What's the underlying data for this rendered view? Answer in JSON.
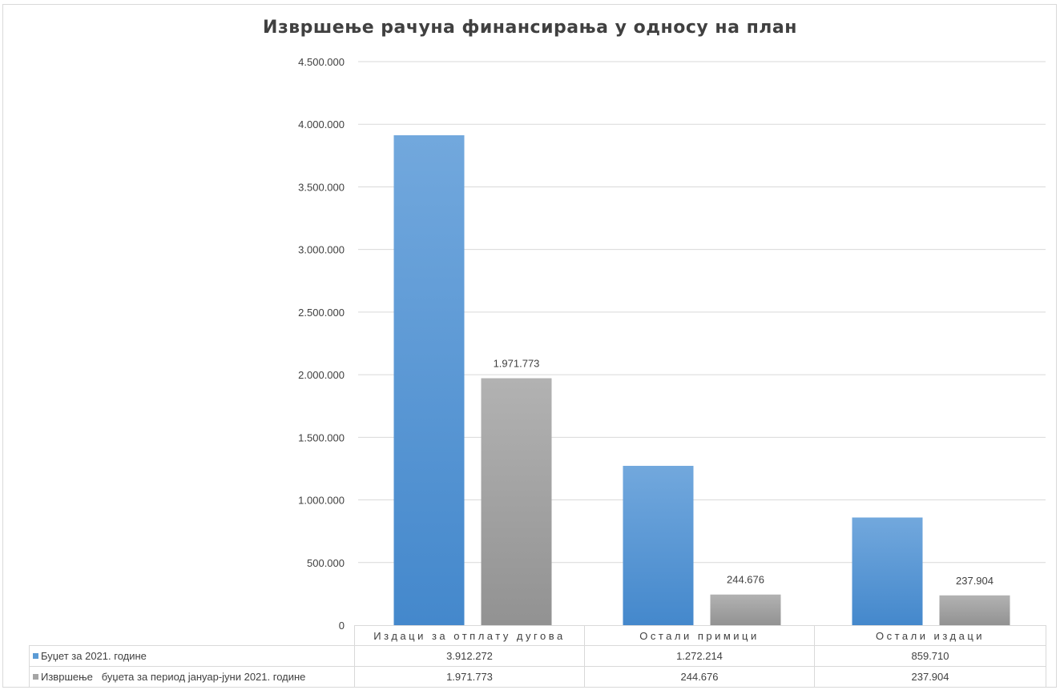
{
  "chart_data": {
    "type": "bar",
    "title": "Извршење рачуна финансирања у односу на план",
    "categories": [
      "Издаци за отплату дугова",
      "Остали примици",
      "Остали издаци"
    ],
    "series": [
      {
        "name": "Буџет за 2021. године",
        "values": [
          3912272,
          1272214,
          859710
        ],
        "value_labels": [
          "3.912.272",
          "1.272.214",
          "859.710"
        ],
        "color": "#5b9bd5"
      },
      {
        "name": "Извршење   буџета за период јануар-јуни 2021. године",
        "values": [
          1971773,
          244676,
          237904
        ],
        "value_labels": [
          "1.971.773",
          "244.676",
          "237.904"
        ],
        "color": "#a5a5a5"
      }
    ],
    "bar_data_labels": [
      "1.971.773",
      "244.676",
      "237.904"
    ],
    "ylim": [
      0,
      4500000
    ],
    "yticks": [
      0,
      500000,
      1000000,
      1500000,
      2000000,
      2500000,
      3000000,
      3500000,
      4000000,
      4500000
    ],
    "ytick_labels": [
      "0",
      "500.000",
      "1.000.000",
      "1.500.000",
      "2.000.000",
      "2.500.000",
      "3.000.000",
      "3.500.000",
      "4.000.000",
      "4.500.000"
    ],
    "xlabel": "",
    "ylabel": "",
    "grid": true,
    "legend": "data-table-below"
  }
}
